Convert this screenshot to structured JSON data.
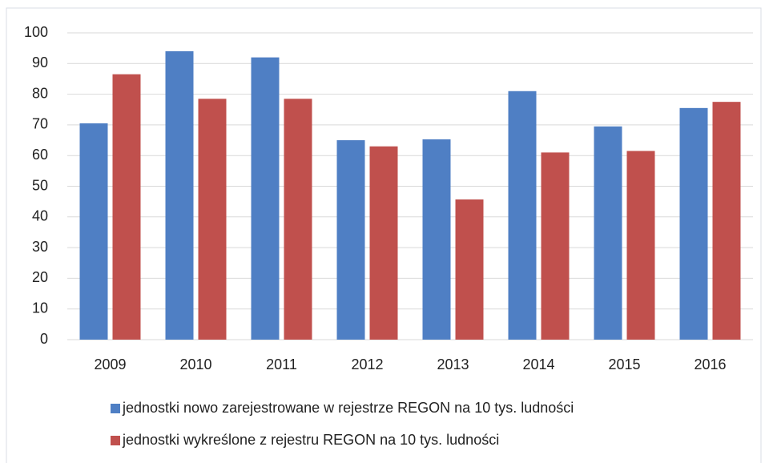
{
  "chart_data": {
    "type": "bar",
    "categories": [
      "2009",
      "2010",
      "2011",
      "2012",
      "2013",
      "2014",
      "2015",
      "2016"
    ],
    "series": [
      {
        "name": "jednostki nowo zarejestrowane w rejestrze REGON na 10 tys. ludności",
        "color": "#4f7fc4",
        "values": [
          70.5,
          94,
          92,
          65,
          65.3,
          81,
          69.5,
          75.5
        ]
      },
      {
        "name": "jednostki wykreślone z rejestru REGON na 10 tys. ludności",
        "color": "#c0504d",
        "values": [
          86.5,
          78.5,
          78.5,
          63,
          45.7,
          61,
          61.5,
          77.5
        ]
      }
    ],
    "ylim": [
      0,
      100
    ],
    "yticks": [
      0,
      10,
      20,
      30,
      40,
      50,
      60,
      70,
      80,
      90,
      100
    ],
    "grid": true,
    "legend": "bottom"
  }
}
